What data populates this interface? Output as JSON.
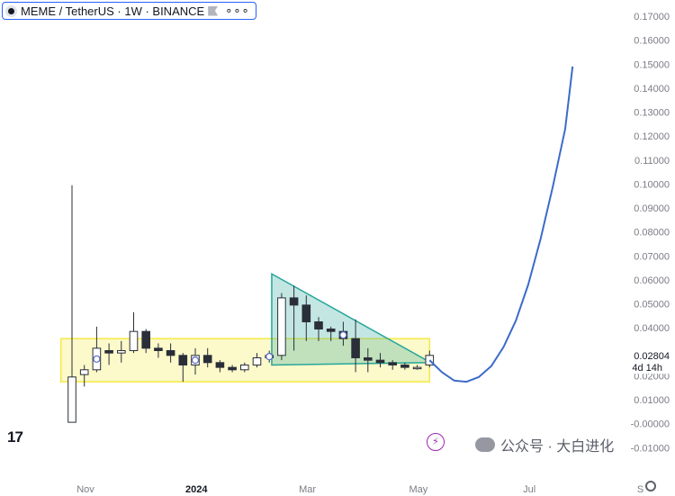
{
  "header": {
    "title": "MEME / TetherUS · 1W · BINANCE",
    "more": "∘∘∘"
  },
  "watermark": "公众号 · 大白进化",
  "tv_logo": "17",
  "chart_data": {
    "type": "candlestick",
    "y_ticks": [
      "0.17000",
      "0.16000",
      "0.15000",
      "0.14000",
      "0.13000",
      "0.12000",
      "0.11000",
      "0.10000",
      "0.09000",
      "0.08000",
      "0.07000",
      "0.06000",
      "0.05000",
      "0.04000",
      "0.03000",
      "0.02000",
      "0.01000",
      "-0.00000",
      "-0.01000"
    ],
    "ylim": [
      -0.0125,
      0.1725
    ],
    "x_labels": [
      {
        "label": "Nov",
        "week": 0
      },
      {
        "label": "2024",
        "week": 9
      },
      {
        "label": "Mar",
        "week": 18
      },
      {
        "label": "May",
        "week": 27
      },
      {
        "label": "Jul",
        "week": 36
      },
      {
        "label": "S",
        "week": 45
      }
    ],
    "price_label": {
      "value": "0.02804",
      "countdown": "4d 14h",
      "price": 0.028
    },
    "candles": [
      {
        "o": 0.0006,
        "h": 0.0995,
        "l": 0.0006,
        "c": 0.0195
      },
      {
        "o": 0.0205,
        "h": 0.0245,
        "l": 0.0155,
        "c": 0.0225
      },
      {
        "o": 0.0225,
        "h": 0.0405,
        "l": 0.0215,
        "c": 0.0315
      },
      {
        "o": 0.0305,
        "h": 0.0335,
        "l": 0.0245,
        "c": 0.0295
      },
      {
        "o": 0.0295,
        "h": 0.0345,
        "l": 0.0255,
        "c": 0.0305
      },
      {
        "o": 0.0305,
        "h": 0.0465,
        "l": 0.0295,
        "c": 0.0385
      },
      {
        "o": 0.0385,
        "h": 0.0395,
        "l": 0.0295,
        "c": 0.0315
      },
      {
        "o": 0.0315,
        "h": 0.0335,
        "l": 0.0275,
        "c": 0.0305
      },
      {
        "o": 0.0305,
        "h": 0.0335,
        "l": 0.0255,
        "c": 0.0285
      },
      {
        "o": 0.0285,
        "h": 0.0295,
        "l": 0.0175,
        "c": 0.0245
      },
      {
        "o": 0.0245,
        "h": 0.0315,
        "l": 0.0205,
        "c": 0.0285
      },
      {
        "o": 0.0285,
        "h": 0.0315,
        "l": 0.0235,
        "c": 0.0255
      },
      {
        "o": 0.0255,
        "h": 0.0265,
        "l": 0.0215,
        "c": 0.0235
      },
      {
        "o": 0.0235,
        "h": 0.0245,
        "l": 0.0215,
        "c": 0.0225
      },
      {
        "o": 0.0225,
        "h": 0.0255,
        "l": 0.0215,
        "c": 0.0245
      },
      {
        "o": 0.0245,
        "h": 0.0295,
        "l": 0.0235,
        "c": 0.0275
      },
      {
        "o": 0.0275,
        "h": 0.0305,
        "l": 0.0255,
        "c": 0.0285
      },
      {
        "o": 0.0285,
        "h": 0.0545,
        "l": 0.0265,
        "c": 0.0525
      },
      {
        "o": 0.0525,
        "h": 0.0575,
        "l": 0.0305,
        "c": 0.0495
      },
      {
        "o": 0.0495,
        "h": 0.0535,
        "l": 0.0345,
        "c": 0.0425
      },
      {
        "o": 0.0425,
        "h": 0.0445,
        "l": 0.0345,
        "c": 0.0395
      },
      {
        "o": 0.0395,
        "h": 0.0405,
        "l": 0.0345,
        "c": 0.0385
      },
      {
        "o": 0.0385,
        "h": 0.0425,
        "l": 0.0325,
        "c": 0.0355
      },
      {
        "o": 0.0355,
        "h": 0.0435,
        "l": 0.0215,
        "c": 0.0275
      },
      {
        "o": 0.0275,
        "h": 0.0315,
        "l": 0.0215,
        "c": 0.0265
      },
      {
        "o": 0.0265,
        "h": 0.0295,
        "l": 0.0235,
        "c": 0.0255
      },
      {
        "o": 0.0255,
        "h": 0.0265,
        "l": 0.0225,
        "c": 0.0245
      },
      {
        "o": 0.0245,
        "h": 0.0255,
        "l": 0.0225,
        "c": 0.0235
      },
      {
        "o": 0.0235,
        "h": 0.0245,
        "l": 0.0225,
        "c": 0.0235
      },
      {
        "o": 0.0245,
        "h": 0.0305,
        "l": 0.0235,
        "c": 0.0285
      }
    ],
    "markers_at_week": [
      2,
      10,
      16,
      22
    ],
    "zones": {
      "rectangle": {
        "week_start": -0.9,
        "week_end": 29.0,
        "low": 0.0175,
        "high": 0.0355,
        "color": "#f5e942"
      },
      "triangle": {
        "points": [
          [
            16.2,
            0.0625
          ],
          [
            16.2,
            0.0245
          ],
          [
            29.1,
            0.0255
          ]
        ],
        "color": "#26a69a"
      }
    },
    "projection": {
      "color": "#3b6bc9",
      "points": [
        [
          29.0,
          0.0265
        ],
        [
          30.0,
          0.0215
        ],
        [
          31.0,
          0.018
        ],
        [
          32.0,
          0.0175
        ],
        [
          33.0,
          0.0195
        ],
        [
          34.0,
          0.024
        ],
        [
          35.0,
          0.032
        ],
        [
          36.0,
          0.043
        ],
        [
          37.0,
          0.058
        ],
        [
          38.0,
          0.077
        ],
        [
          39.0,
          0.099
        ],
        [
          40.0,
          0.123
        ],
        [
          40.6,
          0.149
        ]
      ]
    }
  }
}
